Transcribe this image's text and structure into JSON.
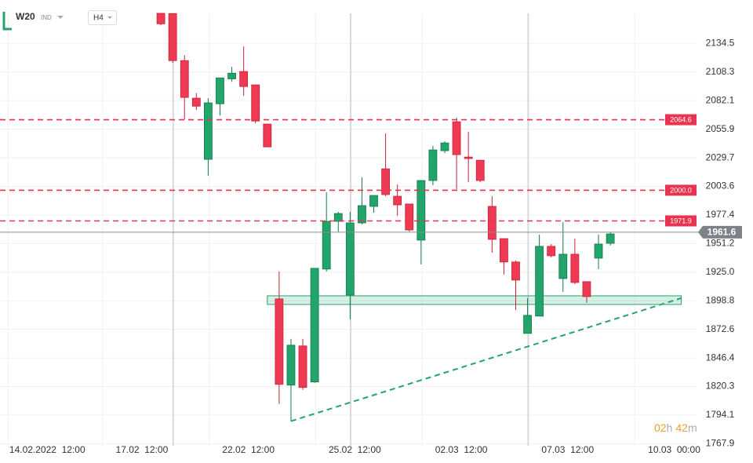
{
  "chart_data": {
    "type": "candlestick",
    "title": "W20",
    "subtitle": "IND",
    "timeframe": "H4",
    "categories": [
      "14.02.2022  12:00",
      null,
      null,
      null,
      null,
      null,
      null,
      null,
      "17.02  12:00",
      null,
      null,
      null,
      null,
      null,
      null,
      null,
      null,
      "22.02  12:00",
      null,
      null,
      null,
      null,
      null,
      null,
      null,
      null,
      "25.02  12:00",
      null,
      null,
      null,
      null,
      null,
      null,
      null,
      null,
      "02.03  12:00",
      null,
      null,
      null,
      null,
      null,
      null,
      null,
      null,
      "07.03  12:00",
      null,
      null,
      null,
      null,
      null,
      null,
      null,
      null,
      "10.03  00:00"
    ],
    "open": [
      null,
      null,
      null,
      null,
      null,
      null,
      null,
      null,
      null,
      null,
      2162,
      2161.8,
      2118.7,
      2084.3,
      2028.3,
      2079.2,
      2102,
      2108.7,
      2096.5,
      2060.6,
      1900.5,
      1821.5,
      1857.4,
      1824.4,
      1927.8,
      1971.5,
      1904,
      1970.1,
      1985.2,
      2019.6,
      1994.5,
      1987.4,
      1954.3,
      2008.9,
      2036.2,
      2062.7,
      2030.4,
      2027.5,
      1985.2,
      1955.7,
      1934.3,
      1868.9,
      1884.7,
      1948.6,
      1919.1,
      1941.4,
      1916.3,
      1937.8,
      1951.4,
      null,
      null,
      null,
      null,
      null
    ],
    "high": [
      null,
      null,
      null,
      null,
      null,
      null,
      null,
      null,
      null,
      null,
      2162,
      2161.8,
      2123.7,
      2089,
      2084.3,
      2102.9,
      2113,
      2131.6,
      2096.5,
      2061,
      1925.6,
      1863.9,
      1863.9,
      1928.5,
      1998.1,
      1980.2,
      1980.2,
      2011.7,
      1995.2,
      2052,
      2005.3,
      1987.4,
      2008.9,
      2040.5,
      2044.8,
      2066.3,
      2053.4,
      2027.5,
      1994.5,
      1955.7,
      1935.7,
      1901.2,
      1959.3,
      1950.7,
      1970.8,
      1955.7,
      1916.3,
      1959.3,
      1961.5,
      null,
      null,
      null,
      null,
      null
    ],
    "low": [
      null,
      null,
      null,
      null,
      null,
      null,
      null,
      null,
      null,
      null,
      2151,
      2116.6,
      2064.9,
      2073.5,
      2013.2,
      2068.5,
      2099.3,
      2086.4,
      2061.3,
      2039.7,
      1804.3,
      1788.5,
      1817.2,
      1823.7,
      1925.6,
      1961.5,
      1881.8,
      1968.7,
      1979.4,
      1994.5,
      1976.6,
      1962.2,
      1932.1,
      2004.6,
      2034,
      2001,
      2007.4,
      2007.4,
      1942.8,
      1922.8,
      1890.4,
      1868.9,
      1884.7,
      1938.5,
      1906.9,
      1914.1,
      1896.9,
      1927.8,
      1949.4,
      null,
      null,
      null,
      null,
      null
    ],
    "close": [
      null,
      null,
      null,
      null,
      null,
      null,
      null,
      null,
      null,
      null,
      2152.4,
      2118.7,
      2085,
      2077,
      2080,
      2102.9,
      2107.2,
      2095,
      2063.4,
      2039.7,
      1822.2,
      1858.1,
      1819.4,
      1928.5,
      1971.5,
      1978.7,
      1970.1,
      1985.9,
      1995.2,
      1996,
      1986.6,
      1963.6,
      2008.9,
      2036.9,
      2043.3,
      2032.6,
      2029,
      2008.9,
      1955,
      1934.3,
      1917.7,
      1885.4,
      1948.6,
      1940,
      1941.4,
      1915.5,
      1902.6,
      1950.7,
      1960,
      null,
      null,
      null,
      null,
      null
    ],
    "up_color": "#22a46b",
    "down_color": "#ee3a52",
    "ylim": [
      1766,
      2162
    ],
    "yticks": [
      2134.5,
      2108.3,
      2082.1,
      2055.9,
      2029.7,
      2003.6,
      1977.4,
      1951.2,
      {
        "value": 1925,
        "label": "1925.0"
      },
      1898.8,
      1872.6,
      1846.4,
      1820.3,
      1794.1,
      1767.9
    ],
    "grid": true,
    "last_price": {
      "value": 1961.6,
      "label": "1961.6"
    },
    "levels": [
      2064.6,
      {
        "value": 2000,
        "label": "2000.0"
      },
      1971.9
    ],
    "zone": {
      "x": [
        19,
        54
      ],
      "low": 1895.4,
      "high": 1903.3
    },
    "trendline": {
      "x": [
        21,
        54
      ],
      "values": [
        1788.5,
        1901.2
      ]
    },
    "timer": [
      "02",
      "h",
      "42",
      "m"
    ]
  }
}
